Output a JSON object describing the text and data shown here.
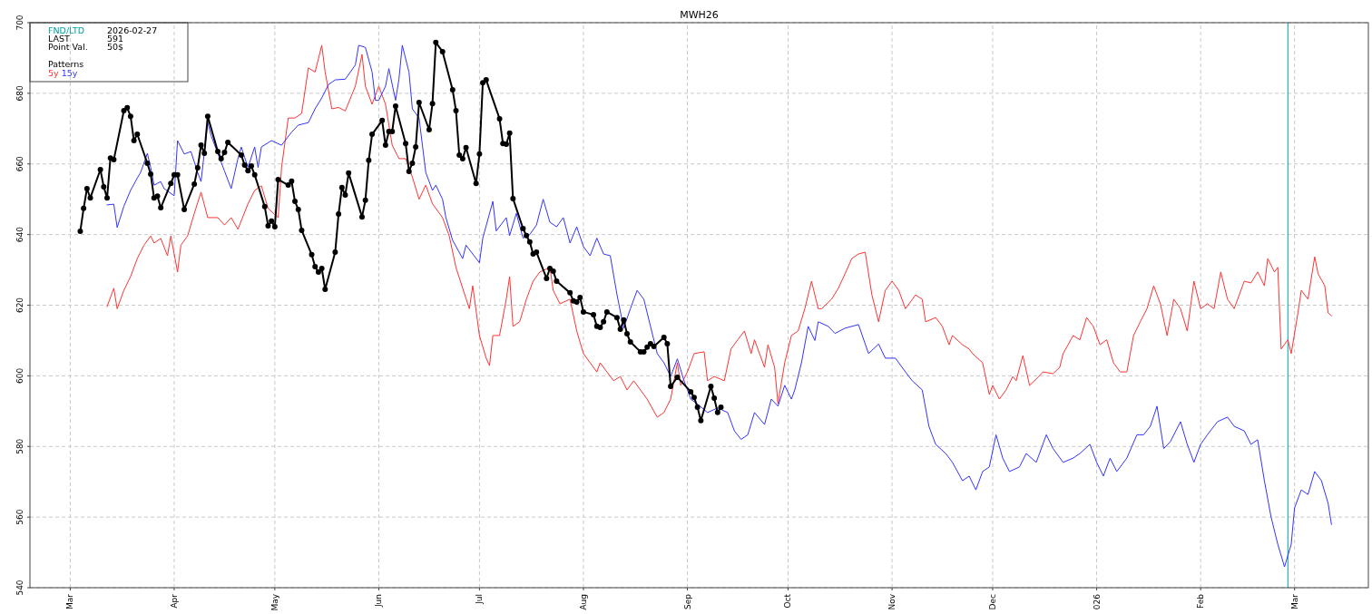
{
  "chart_data": {
    "type": "line",
    "title": "MWH26",
    "xlim": [
      "2025-02-17",
      "2026-03-23"
    ],
    "ylim": [
      540,
      700
    ],
    "xticks": [
      {
        "value": "2025-03-01",
        "label": "Mar"
      },
      {
        "value": "2025-04-01",
        "label": "Apr"
      },
      {
        "value": "2025-05-01",
        "label": "May"
      },
      {
        "value": "2025-06-01",
        "label": "Jun"
      },
      {
        "value": "2025-07-01",
        "label": "Jul"
      },
      {
        "value": "2025-08-01",
        "label": "Aug"
      },
      {
        "value": "2025-09-01",
        "label": "Sep"
      },
      {
        "value": "2025-10-01",
        "label": "Oct"
      },
      {
        "value": "2025-11-01",
        "label": "Nov"
      },
      {
        "value": "2025-12-01",
        "label": "Dec"
      },
      {
        "value": "2026-01-01",
        "label": "026"
      },
      {
        "value": "2026-02-01",
        "label": "Feb"
      },
      {
        "value": "2026-03-01",
        "label": "Mar"
      }
    ],
    "yticks": [
      540,
      560,
      580,
      600,
      620,
      640,
      660,
      680,
      700
    ],
    "grid": true,
    "legend": "top left",
    "legend_title": "Patterns",
    "line_style": "solid",
    "annotations": [
      "FND/LTD",
      "2026-02-27",
      "LAST",
      "591",
      "Point Val.",
      "50$"
    ],
    "ref_lines": [
      {
        "axis": "x",
        "value": "2026-02-27",
        "color": "#00a0a0"
      }
    ],
    "series": [
      {
        "name": "5y",
        "color": "#ff3333",
        "x": [
          "2025-03-12",
          "2025-03-14",
          "2025-03-15",
          "2025-03-17",
          "2025-03-19",
          "2025-03-21",
          "2025-03-23",
          "2025-03-25",
          "2025-03-26",
          "2025-03-28",
          "2025-03-30",
          "2025-03-31",
          "2025-04-02",
          "2025-04-03",
          "2025-04-05",
          "2025-04-07",
          "2025-04-09",
          "2025-04-11",
          "2025-04-14",
          "2025-04-16",
          "2025-04-18",
          "2025-04-20",
          "2025-04-23",
          "2025-04-25",
          "2025-04-27",
          "2025-04-29",
          "2025-05-02",
          "2025-05-03",
          "2025-05-05",
          "2025-05-07",
          "2025-05-09",
          "2025-05-11",
          "2025-05-13",
          "2025-05-15",
          "2025-05-16",
          "2025-05-18",
          "2025-05-20",
          "2025-05-22",
          "2025-05-25",
          "2025-05-27",
          "2025-05-28",
          "2025-05-30",
          "2025-06-01",
          "2025-06-03",
          "2025-06-05",
          "2025-06-07",
          "2025-06-09",
          "2025-06-11",
          "2025-06-13",
          "2025-06-15",
          "2025-06-17",
          "2025-06-20",
          "2025-06-22",
          "2025-06-24",
          "2025-06-26",
          "2025-06-28",
          "2025-06-29",
          "2025-07-01",
          "2025-07-03",
          "2025-07-04",
          "2025-07-05",
          "2025-07-07",
          "2025-07-09",
          "2025-07-10",
          "2025-07-11",
          "2025-07-13",
          "2025-07-15",
          "2025-07-17",
          "2025-07-19",
          "2025-07-22",
          "2025-07-23",
          "2025-07-25",
          "2025-07-28",
          "2025-07-30",
          "2025-08-01",
          "2025-08-03",
          "2025-08-05",
          "2025-08-06",
          "2025-08-08",
          "2025-08-10",
          "2025-08-12",
          "2025-08-14",
          "2025-08-16",
          "2025-08-18",
          "2025-08-20",
          "2025-08-23",
          "2025-08-25",
          "2025-08-27",
          "2025-08-29",
          "2025-08-30",
          "2025-09-01",
          "2025-09-03",
          "2025-09-06",
          "2025-09-07",
          "2025-09-09",
          "2025-09-12",
          "2025-09-14",
          "2025-09-16",
          "2025-09-18",
          "2025-09-20",
          "2025-09-21",
          "2025-09-24",
          "2025-09-25",
          "2025-09-27",
          "2025-09-28",
          "2025-09-30",
          "2025-10-02",
          "2025-10-04",
          "2025-10-06",
          "2025-10-08",
          "2025-10-10",
          "2025-10-11",
          "2025-10-14",
          "2025-10-16",
          "2025-10-18",
          "2025-10-20",
          "2025-10-22",
          "2025-10-24",
          "2025-10-26",
          "2025-10-28",
          "2025-10-30",
          "2025-11-01",
          "2025-11-03",
          "2025-11-05",
          "2025-11-08",
          "2025-11-10",
          "2025-11-11",
          "2025-11-14",
          "2025-11-16",
          "2025-11-18",
          "2025-11-19",
          "2025-11-22",
          "2025-11-24",
          "2025-11-25",
          "2025-11-28",
          "2025-11-30",
          "2025-12-01",
          "2025-12-03",
          "2025-12-05",
          "2025-12-07",
          "2025-12-08",
          "2025-12-10",
          "2025-12-12",
          "2025-12-14",
          "2025-12-16",
          "2025-12-19",
          "2025-12-21",
          "2025-12-22",
          "2025-12-25",
          "2025-12-27",
          "2025-12-29",
          "2025-12-31",
          "2026-01-02",
          "2026-01-04",
          "2026-01-06",
          "2026-01-08",
          "2026-01-10",
          "2026-01-12",
          "2026-01-14",
          "2026-01-16",
          "2026-01-18",
          "2026-01-20",
          "2026-01-22",
          "2026-01-24",
          "2026-01-26",
          "2026-01-28",
          "2026-01-30",
          "2026-02-01",
          "2026-02-03",
          "2026-02-05",
          "2026-02-07",
          "2026-02-09",
          "2026-02-11",
          "2026-02-14",
          "2026-02-16",
          "2026-02-18",
          "2026-02-20",
          "2026-02-21",
          "2026-02-23",
          "2026-02-24",
          "2026-02-25",
          "2026-02-27",
          "2026-02-28",
          "2026-03-02",
          "2026-03-03",
          "2026-03-05",
          "2026-03-07",
          "2026-03-08",
          "2026-03-10",
          "2026-03-11",
          "2026-03-12"
        ],
        "values": [
          619.6,
          624.8,
          619,
          624.2,
          628.1,
          633.2,
          637,
          639.6,
          637.6,
          638.9,
          634,
          639.6,
          629.4,
          637,
          639.6,
          646,
          652,
          644.8,
          644.8,
          642.7,
          644.8,
          641.5,
          648.7,
          652.5,
          653.8,
          647.4,
          644.8,
          658.9,
          673,
          673,
          674.3,
          687.2,
          686,
          693.6,
          686,
          675.6,
          676,
          675,
          682,
          691,
          682,
          676.9,
          682,
          676.9,
          665.3,
          661.5,
          661.5,
          656.3,
          650,
          654,
          648.7,
          644.8,
          639.6,
          630.7,
          624.8,
          619,
          625.5,
          611.4,
          605,
          602.9,
          611.4,
          611.4,
          621.7,
          628.1,
          614,
          615.3,
          621.7,
          626.8,
          629.4,
          630.7,
          624.2,
          620.4,
          621.7,
          612.7,
          606.3,
          603.7,
          601.1,
          603.7,
          601.1,
          598.6,
          599.8,
          596,
          598.6,
          596,
          593.4,
          588.3,
          589.6,
          593.4,
          603.7,
          597.3,
          601.1,
          606.3,
          606.8,
          598.6,
          599.8,
          598.6,
          607.6,
          610.2,
          612.7,
          606.3,
          610.2,
          602.4,
          608.8,
          602.4,
          592.1,
          603.7,
          611.4,
          612.7,
          619,
          626.8,
          619,
          619,
          621.7,
          624.8,
          628.9,
          633.2,
          634.5,
          635,
          622.9,
          615.3,
          624.2,
          626.8,
          624.2,
          619,
          622.9,
          621.7,
          615.3,
          616.5,
          614,
          608.8,
          611.4,
          608.8,
          607.6,
          606.3,
          603.7,
          594.7,
          597.3,
          593.4,
          596,
          599.8,
          598.6,
          605.7,
          597.3,
          599.1,
          601.1,
          600.6,
          602.4,
          606.3,
          611.4,
          610.2,
          616.5,
          614,
          608.8,
          610.2,
          603.7,
          601.1,
          601.1,
          611.4,
          615.3,
          619,
          625.5,
          620.4,
          611.4,
          621.7,
          619,
          612.7,
          626.8,
          619,
          620.4,
          619,
          629.4,
          621.7,
          619,
          626.8,
          626.3,
          629.4,
          625.5,
          633.2,
          629.4,
          630.7,
          607.6,
          610.2,
          606.3,
          617.8,
          624.2,
          621.7,
          633.7,
          628.9,
          625.5,
          617.8,
          617
        ]
      },
      {
        "name": "15y",
        "color": "#3333ff",
        "x": [
          "2025-03-12",
          "2025-03-14",
          "2025-03-15",
          "2025-03-17",
          "2025-03-19",
          "2025-03-21",
          "2025-03-22",
          "2025-03-24",
          "2025-03-25",
          "2025-03-26",
          "2025-03-28",
          "2025-03-29",
          "2025-04-01",
          "2025-04-02",
          "2025-04-04",
          "2025-04-06",
          "2025-04-08",
          "2025-04-09",
          "2025-04-11",
          "2025-04-12",
          "2025-04-14",
          "2025-04-16",
          "2025-04-18",
          "2025-04-20",
          "2025-04-21",
          "2025-04-23",
          "2025-04-25",
          "2025-04-26",
          "2025-04-27",
          "2025-04-30",
          "2025-05-03",
          "2025-05-06",
          "2025-05-08",
          "2025-05-11",
          "2025-05-13",
          "2025-05-15",
          "2025-05-17",
          "2025-05-19",
          "2025-05-22",
          "2025-05-25",
          "2025-05-26",
          "2025-05-28",
          "2025-05-30",
          "2025-05-31",
          "2025-06-01",
          "2025-06-03",
          "2025-06-04",
          "2025-06-06",
          "2025-06-07",
          "2025-06-08",
          "2025-06-10",
          "2025-06-11",
          "2025-06-13",
          "2025-06-14",
          "2025-06-15",
          "2025-06-17",
          "2025-06-18",
          "2025-06-20",
          "2025-06-21",
          "2025-06-23",
          "2025-06-26",
          "2025-06-27",
          "2025-06-29",
          "2025-07-01",
          "2025-07-02",
          "2025-07-05",
          "2025-07-06",
          "2025-07-09",
          "2025-07-10",
          "2025-07-12",
          "2025-07-14",
          "2025-07-16",
          "2025-07-18",
          "2025-07-20",
          "2025-07-22",
          "2025-07-24",
          "2025-07-26",
          "2025-07-28",
          "2025-07-30",
          "2025-08-01",
          "2025-08-03",
          "2025-08-05",
          "2025-08-07",
          "2025-08-09",
          "2025-08-11",
          "2025-08-13",
          "2025-08-15",
          "2025-08-17",
          "2025-08-19",
          "2025-08-21",
          "2025-08-23",
          "2025-08-25",
          "2025-08-27",
          "2025-08-29",
          "2025-08-31",
          "2025-09-02",
          "2025-09-04",
          "2025-09-07",
          "2025-09-10",
          "2025-09-13",
          "2025-09-15",
          "2025-09-17",
          "2025-09-19",
          "2025-09-21",
          "2025-09-24",
          "2025-09-26",
          "2025-09-28",
          "2025-09-30",
          "2025-10-02",
          "2025-10-03",
          "2025-10-05",
          "2025-10-07",
          "2025-10-09",
          "2025-10-10",
          "2025-10-13",
          "2025-10-15",
          "2025-10-18",
          "2025-10-22",
          "2025-10-25",
          "2025-10-28",
          "2025-10-30",
          "2025-11-02",
          "2025-11-05",
          "2025-11-07",
          "2025-11-10",
          "2025-11-12",
          "2025-11-14",
          "2025-11-17",
          "2025-11-19",
          "2025-11-22",
          "2025-11-24",
          "2025-11-26",
          "2025-11-28",
          "2025-11-30",
          "2025-12-02",
          "2025-12-04",
          "2025-12-06",
          "2025-12-09",
          "2025-12-11",
          "2025-12-14",
          "2025-12-17",
          "2025-12-19",
          "2025-12-22",
          "2025-12-25",
          "2025-12-27",
          "2025-12-30",
          "2026-01-01",
          "2026-01-03",
          "2026-01-05",
          "2026-01-07",
          "2026-01-10",
          "2026-01-13",
          "2026-01-15",
          "2026-01-17",
          "2026-01-19",
          "2026-01-21",
          "2026-01-23",
          "2026-01-26",
          "2026-01-28",
          "2026-01-30",
          "2026-02-01",
          "2026-02-03",
          "2026-02-06",
          "2026-02-09",
          "2026-02-11",
          "2026-02-14",
          "2026-02-16",
          "2026-02-18",
          "2026-02-20",
          "2026-02-22",
          "2026-02-24",
          "2026-02-26",
          "2026-02-28",
          "2026-03-01",
          "2026-03-03",
          "2026-03-05",
          "2026-03-07",
          "2026-03-09",
          "2026-03-11",
          "2026-03-12"
        ],
        "values": [
          648.4,
          648.6,
          642,
          648,
          652.5,
          656,
          657.6,
          663,
          659,
          654,
          655,
          653,
          651,
          666.6,
          662.8,
          663.5,
          657.6,
          655,
          671.8,
          668,
          663,
          658,
          653,
          661.5,
          664.8,
          659,
          664.8,
          659,
          664.8,
          666.6,
          665.3,
          669,
          671,
          671.7,
          675.6,
          678.7,
          682.5,
          683.8,
          684,
          688,
          693.6,
          693,
          686,
          678,
          678,
          682,
          687,
          678,
          684,
          693.6,
          686,
          675.6,
          673,
          665.3,
          657.6,
          652.5,
          654,
          650,
          644.8,
          638.4,
          633.2,
          637,
          634.5,
          632,
          639,
          649.4,
          641,
          644.8,
          639.7,
          646,
          639,
          640,
          642.7,
          650,
          643.5,
          642.2,
          644.8,
          637.6,
          642.2,
          636.6,
          634,
          639,
          634.5,
          634,
          623,
          613.5,
          619,
          624.2,
          621.7,
          614,
          606.3,
          603.7,
          599.8,
          604.8,
          598.6,
          593.4,
          592,
          589.6,
          590.9,
          589.6,
          584.4,
          582,
          583.3,
          589.6,
          586.2,
          593.4,
          591.4,
          597.3,
          593.4,
          596,
          603.7,
          614,
          610,
          615.3,
          614,
          612,
          613.5,
          614.5,
          606.3,
          609,
          605,
          605,
          601.1,
          598.6,
          596,
          585.7,
          580.6,
          578,
          575.5,
          570.3,
          571.6,
          567.7,
          572.9,
          574.2,
          583.3,
          576.7,
          572.9,
          574.2,
          578,
          575.5,
          583.3,
          579.4,
          575.5,
          576.7,
          578,
          580.6,
          575.5,
          571.6,
          576.7,
          572.9,
          576.7,
          583.3,
          583.3,
          585.7,
          591.4,
          579.4,
          581.4,
          587,
          580.6,
          575.5,
          580.6,
          583.3,
          587,
          588.3,
          585.7,
          584.4,
          580.6,
          581.9,
          570.3,
          560,
          552.3,
          545.9,
          552.3,
          562.6,
          567.7,
          566.4,
          572.9,
          570.3,
          563.9,
          557.9
        ]
      },
      {
        "color": "#000000",
        "marker": "circle",
        "x": [
          "2025-03-04",
          "2025-03-05",
          "2025-03-06",
          "2025-03-07",
          "2025-03-10",
          "2025-03-11",
          "2025-03-12",
          "2025-03-13",
          "2025-03-14",
          "2025-03-17",
          "2025-03-18",
          "2025-03-19",
          "2025-03-20",
          "2025-03-21",
          "2025-03-24",
          "2025-03-25",
          "2025-03-26",
          "2025-03-27",
          "2025-03-28",
          "2025-03-31",
          "2025-04-01",
          "2025-04-02",
          "2025-04-04",
          "2025-04-07",
          "2025-04-08",
          "2025-04-09",
          "2025-04-10",
          "2025-04-11",
          "2025-04-14",
          "2025-04-15",
          "2025-04-16",
          "2025-04-17",
          "2025-04-21",
          "2025-04-22",
          "2025-04-23",
          "2025-04-24",
          "2025-04-25",
          "2025-04-28",
          "2025-04-29",
          "2025-04-30",
          "2025-05-01",
          "2025-05-02",
          "2025-05-05",
          "2025-05-06",
          "2025-05-07",
          "2025-05-08",
          "2025-05-09",
          "2025-05-12",
          "2025-05-13",
          "2025-05-14",
          "2025-05-15",
          "2025-05-16",
          "2025-05-19",
          "2025-05-20",
          "2025-05-21",
          "2025-05-22",
          "2025-05-23",
          "2025-05-27",
          "2025-05-28",
          "2025-05-29",
          "2025-05-30",
          "2025-06-02",
          "2025-06-03",
          "2025-06-04",
          "2025-06-05",
          "2025-06-06",
          "2025-06-09",
          "2025-06-10",
          "2025-06-11",
          "2025-06-12",
          "2025-06-13",
          "2025-06-16",
          "2025-06-17",
          "2025-06-18",
          "2025-06-20",
          "2025-06-23",
          "2025-06-24",
          "2025-06-25",
          "2025-06-26",
          "2025-06-27",
          "2025-06-30",
          "2025-07-01",
          "2025-07-02",
          "2025-07-03",
          "2025-07-07",
          "2025-07-08",
          "2025-07-09",
          "2025-07-10",
          "2025-07-11",
          "2025-07-14",
          "2025-07-15",
          "2025-07-16",
          "2025-07-17",
          "2025-07-18",
          "2025-07-21",
          "2025-07-22",
          "2025-07-23",
          "2025-07-24",
          "2025-07-28",
          "2025-07-29",
          "2025-07-30",
          "2025-07-31",
          "2025-08-01",
          "2025-08-04",
          "2025-08-05",
          "2025-08-06",
          "2025-08-07",
          "2025-08-08",
          "2025-08-11",
          "2025-08-12",
          "2025-08-13",
          "2025-08-14",
          "2025-08-15",
          "2025-08-18",
          "2025-08-19",
          "2025-08-20",
          "2025-08-21",
          "2025-08-22",
          "2025-08-25",
          "2025-08-26",
          "2025-08-27",
          "2025-08-29",
          "2025-09-02",
          "2025-09-03",
          "2025-09-04",
          "2025-09-05",
          "2025-09-08",
          "2025-09-09",
          "2025-09-10",
          "2025-09-11"
        ],
        "values": [
          640.9,
          647.4,
          653,
          650.4,
          658.4,
          653.5,
          650.4,
          661.7,
          661.2,
          675.1,
          675.9,
          673.5,
          666.6,
          668.4,
          660.2,
          657.1,
          650.4,
          650.9,
          647.6,
          654.5,
          656.9,
          656.9,
          647.1,
          654.3,
          658.9,
          665.3,
          663,
          673.5,
          663.5,
          661.5,
          663.3,
          666.1,
          662.5,
          659.7,
          658.1,
          659.4,
          656.9,
          647.9,
          642.5,
          643.8,
          642.2,
          655.6,
          654,
          655.1,
          649.4,
          647.1,
          641.2,
          634.3,
          630.9,
          629.4,
          630.4,
          624.5,
          635,
          645.8,
          653.3,
          651.2,
          657.4,
          645,
          649.7,
          661,
          668.4,
          672.3,
          665.3,
          669.2,
          669.2,
          676.4,
          665.8,
          657.9,
          660.2,
          664.8,
          677.4,
          669.7,
          677.1,
          694.4,
          691.8,
          681,
          675.1,
          662.5,
          661.5,
          664.6,
          654.5,
          662.8,
          683,
          683.8,
          672.8,
          665.8,
          665.6,
          668.7,
          650.2,
          641.7,
          639.7,
          637.9,
          634.5,
          635,
          627.6,
          630.4,
          629.6,
          626.8,
          623.5,
          621.2,
          620.9,
          622.2,
          618.1,
          617.3,
          614,
          613.7,
          615.3,
          618.1,
          616.5,
          613.2,
          615.8,
          611.9,
          609.6,
          606.8,
          606.8,
          608.1,
          609.1,
          608.3,
          610.9,
          609.1,
          597,
          599.6,
          595.5,
          593.9,
          591.1,
          587.3,
          597,
          593.7,
          589.6,
          591.1
        ]
      }
    ]
  }
}
